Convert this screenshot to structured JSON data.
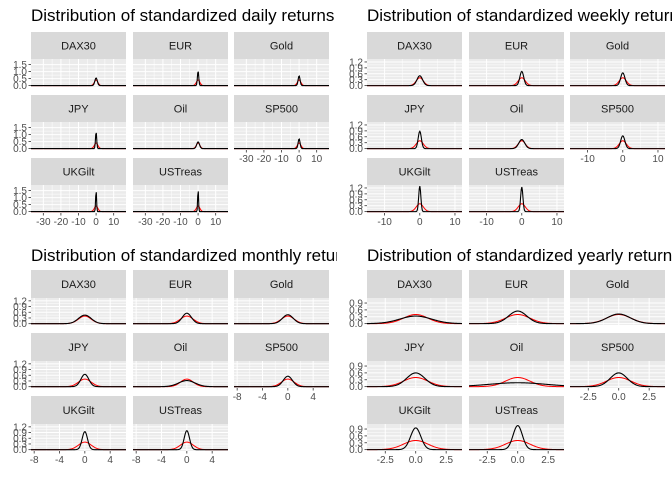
{
  "colors": {
    "panel_bg": "#ebebeb",
    "strip_bg": "#d9d9d9",
    "grid_major": "#ffffff",
    "empirical_line": "#000000",
    "normal_line": "#ff0000",
    "tick_text": "#4d4d4d"
  },
  "chart_data": [
    {
      "type": "line",
      "title": "Distribution of standardized daily returns",
      "facet_order": [
        "DAX30",
        "EUR",
        "Gold",
        "JPY",
        "Oil",
        "SP500",
        "UKGilt",
        "USTreas"
      ],
      "xlim": [
        -37,
        17
      ],
      "x_ticks": [
        -30,
        -20,
        -10,
        0,
        10
      ],
      "x_tick_labels": [
        "-30",
        "-20",
        "-10",
        "0",
        "10"
      ],
      "ylim": [
        -0.1,
        1.9
      ],
      "y_ticks": [
        0.0,
        0.5,
        1.0,
        1.5
      ],
      "y_tick_labels": [
        "0.0",
        "0.5",
        "1.0",
        "1.5"
      ],
      "series": [
        {
          "facet": "DAX30",
          "empirical_sd": 0.7,
          "empirical_peak": 0.55,
          "normal_sd": 1.0
        },
        {
          "facet": "EUR",
          "empirical_sd": 0.38,
          "empirical_peak": 1.05,
          "normal_sd": 1.0
        },
        {
          "facet": "Gold",
          "empirical_sd": 0.55,
          "empirical_peak": 0.7,
          "normal_sd": 1.0
        },
        {
          "facet": "JPY",
          "empirical_sd": 0.34,
          "empirical_peak": 1.2,
          "normal_sd": 1.0
        },
        {
          "facet": "Oil",
          "empirical_sd": 0.8,
          "empirical_peak": 0.48,
          "normal_sd": 1.0
        },
        {
          "facet": "SP500",
          "empirical_sd": 0.55,
          "empirical_peak": 0.7,
          "normal_sd": 1.0
        },
        {
          "facet": "UKGilt",
          "empirical_sd": 0.26,
          "empirical_peak": 1.55,
          "normal_sd": 1.0
        },
        {
          "facet": "USTreas",
          "empirical_sd": 0.24,
          "empirical_peak": 1.65,
          "normal_sd": 1.0
        }
      ]
    },
    {
      "type": "line",
      "title": "Distribution of standardized weekly returns",
      "facet_order": [
        "DAX30",
        "EUR",
        "Gold",
        "JPY",
        "Oil",
        "SP500",
        "UKGilt",
        "USTreas"
      ],
      "xlim": [
        -15,
        12
      ],
      "x_ticks": [
        -10,
        0,
        10
      ],
      "x_tick_labels": [
        "-10",
        "0",
        "10"
      ],
      "ylim": [
        -0.07,
        1.35
      ],
      "y_ticks": [
        0.0,
        0.3,
        0.6,
        0.9,
        1.2
      ],
      "y_tick_labels": [
        "0.0",
        "0.3",
        "0.6",
        "0.9",
        "1.2"
      ],
      "series": [
        {
          "facet": "DAX30",
          "empirical_sd": 0.8,
          "empirical_peak": 0.5,
          "normal_sd": 1.0
        },
        {
          "facet": "EUR",
          "empirical_sd": 0.55,
          "empirical_peak": 0.72,
          "normal_sd": 1.0
        },
        {
          "facet": "Gold",
          "empirical_sd": 0.6,
          "empirical_peak": 0.65,
          "normal_sd": 1.0
        },
        {
          "facet": "JPY",
          "empirical_sd": 0.45,
          "empirical_peak": 0.88,
          "normal_sd": 1.0
        },
        {
          "facet": "Oil",
          "empirical_sd": 0.85,
          "empirical_peak": 0.46,
          "normal_sd": 1.0
        },
        {
          "facet": "SP500",
          "empirical_sd": 0.6,
          "empirical_peak": 0.65,
          "normal_sd": 1.0
        },
        {
          "facet": "UKGilt",
          "empirical_sd": 0.3,
          "empirical_peak": 1.3,
          "normal_sd": 1.0
        },
        {
          "facet": "USTreas",
          "empirical_sd": 0.32,
          "empirical_peak": 1.25,
          "normal_sd": 1.0
        }
      ]
    },
    {
      "type": "line",
      "title": "Distribution of standardized monthly returns",
      "facet_order": [
        "DAX30",
        "EUR",
        "Gold",
        "JPY",
        "Oil",
        "SP500",
        "UKGilt",
        "USTreas"
      ],
      "xlim": [
        -8.5,
        6.5
      ],
      "x_ticks": [
        -8,
        -4,
        0,
        4
      ],
      "x_tick_labels": [
        "-8",
        "-4",
        "0",
        "4"
      ],
      "ylim": [
        -0.07,
        1.35
      ],
      "y_ticks": [
        0.0,
        0.3,
        0.6,
        0.9,
        1.2
      ],
      "y_tick_labels": [
        "0.0",
        "0.3",
        "0.6",
        "0.9",
        "1.2"
      ],
      "series": [
        {
          "facet": "DAX30",
          "empirical_sd": 1.0,
          "empirical_peak": 0.45,
          "normal_sd": 1.0
        },
        {
          "facet": "EUR",
          "empirical_sd": 0.72,
          "empirical_peak": 0.55,
          "normal_sd": 1.0
        },
        {
          "facet": "Gold",
          "empirical_sd": 0.85,
          "empirical_peak": 0.47,
          "normal_sd": 1.0
        },
        {
          "facet": "JPY",
          "empirical_sd": 0.62,
          "empirical_peak": 0.65,
          "normal_sd": 1.0
        },
        {
          "facet": "Oil",
          "empirical_sd": 1.3,
          "empirical_peak": 0.32,
          "normal_sd": 1.0
        },
        {
          "facet": "SP500",
          "empirical_sd": 0.72,
          "empirical_peak": 0.55,
          "normal_sd": 1.0
        },
        {
          "facet": "UKGilt",
          "empirical_sd": 0.42,
          "empirical_peak": 0.95,
          "normal_sd": 1.0
        },
        {
          "facet": "USTreas",
          "empirical_sd": 0.42,
          "empirical_peak": 1.0,
          "normal_sd": 1.0
        }
      ]
    },
    {
      "type": "line",
      "title": "Distribution of standardized yearly returns",
      "facet_order": [
        "DAX30",
        "EUR",
        "Gold",
        "JPY",
        "Oil",
        "SP500",
        "UKGilt",
        "USTreas"
      ],
      "xlim": [
        -4,
        3.8
      ],
      "x_ticks": [
        -2.5,
        0.0,
        2.5
      ],
      "x_tick_labels": [
        "-2.5",
        "0.0",
        "2.5"
      ],
      "ylim": [
        -0.06,
        1.12
      ],
      "y_ticks": [
        0.0,
        0.3,
        0.6,
        0.9
      ],
      "y_tick_labels": [
        "0.0",
        "0.3",
        "0.6",
        "0.9"
      ],
      "series": [
        {
          "facet": "DAX30",
          "empirical_sd": 1.3,
          "empirical_peak": 0.33,
          "normal_sd": 1.0
        },
        {
          "facet": "EUR",
          "empirical_sd": 0.75,
          "empirical_peak": 0.55,
          "normal_sd": 1.0
        },
        {
          "facet": "Gold",
          "empirical_sd": 0.95,
          "empirical_peak": 0.42,
          "normal_sd": 1.0
        },
        {
          "facet": "JPY",
          "empirical_sd": 0.75,
          "empirical_peak": 0.6,
          "normal_sd": 1.0
        },
        {
          "facet": "Oil",
          "empirical_sd": 2.3,
          "empirical_peak": 0.17,
          "normal_sd": 1.0
        },
        {
          "facet": "SP500",
          "empirical_sd": 0.7,
          "empirical_peak": 0.6,
          "normal_sd": 1.0
        },
        {
          "facet": "UKGilt",
          "empirical_sd": 0.42,
          "empirical_peak": 0.95,
          "normal_sd": 1.0
        },
        {
          "facet": "USTreas",
          "empirical_sd": 0.38,
          "empirical_peak": 1.05,
          "normal_sd": 1.0
        }
      ]
    }
  ]
}
